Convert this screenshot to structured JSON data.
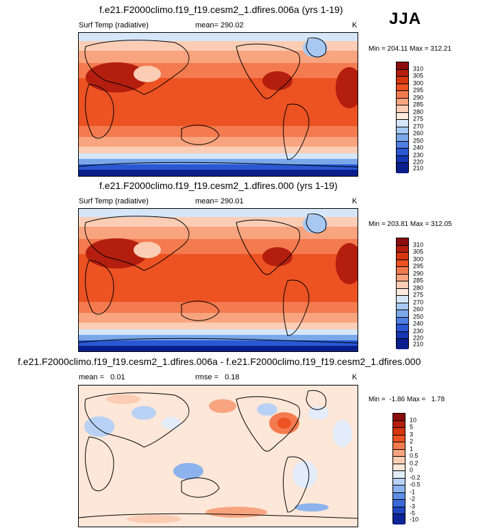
{
  "season": "JJA",
  "panels": [
    {
      "title": "f.e21.F2000climo.f19_f19.cesm2_1.dfires.006a (yrs 1-19)",
      "left_label": "Surf Temp (radiative)",
      "center_label": "mean= 290.02",
      "units": "K",
      "minmax": "Min = 204.11 Max = 312.21",
      "colorbar_labels": [
        "310",
        "305",
        "300",
        "295",
        "290",
        "285",
        "280",
        "275",
        "270",
        "260",
        "250",
        "240",
        "230",
        "220",
        "210"
      ]
    },
    {
      "title": "f.e21.F2000climo.f19_f19.cesm2_1.dfires.000 (yrs 1-19)",
      "left_label": "Surf Temp (radiative)",
      "center_label": "mean= 290.01",
      "units": "K",
      "minmax": "Min = 203.81 Max = 312.05",
      "colorbar_labels": [
        "310",
        "305",
        "300",
        "295",
        "290",
        "285",
        "280",
        "275",
        "270",
        "260",
        "250",
        "240",
        "230",
        "220",
        "210"
      ]
    },
    {
      "title": "f.e21.F2000climo.f19_f19.cesm2_1.dfires.006a - f.e21.F2000climo.f19_f19.cesm2_1.dfires.000",
      "left_label": "mean =   0.01",
      "center_label": "rmse =   0.18",
      "units": "K",
      "minmax": "Min =  -1.86 Max =   1.78",
      "colorbar_labels": [
        "10",
        "5",
        "3",
        "2",
        "1",
        "0.5",
        "0.2",
        "0",
        "-0.2",
        "-0.5",
        "-1",
        "-2",
        "-3",
        "-5",
        "-10"
      ]
    }
  ],
  "colors": {
    "abs_scale": [
      "#8b0d0d",
      "#b41e0e",
      "#d8360d",
      "#ec5222",
      "#f47a4f",
      "#f8a47f",
      "#fbcdb4",
      "#fdebe0",
      "#d6e6f9",
      "#a8c8f2",
      "#7aa7ea",
      "#4d7fe0",
      "#2a58d3",
      "#1436b4",
      "#0a1e8c"
    ],
    "diff_scale": [
      "#8b0d0d",
      "#b41e0e",
      "#d8360d",
      "#ec5222",
      "#f47a4f",
      "#f8a47f",
      "#fbcdb4",
      "#fde7d8",
      "#e2ecfa",
      "#b9d1f4",
      "#8cb3ee",
      "#5f8fe5",
      "#3a69da",
      "#1f45c3",
      "#0c2596"
    ]
  }
}
